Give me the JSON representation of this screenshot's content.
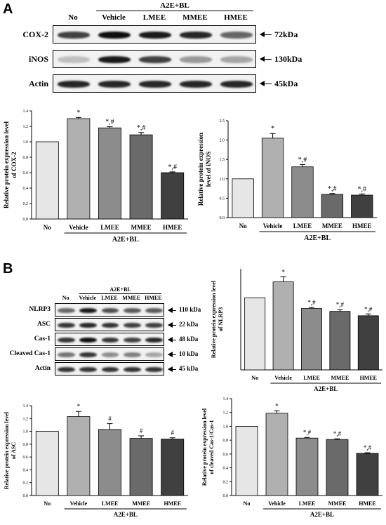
{
  "panels": {
    "a": "A",
    "b": "B"
  },
  "western_a": {
    "group_label": "A2E+BL",
    "lanes": [
      "No",
      "Vehicle",
      "LMEE",
      "MMEE",
      "HMEE"
    ],
    "rows": [
      {
        "name": "COX-2",
        "size": "72kDa",
        "intensity": [
          0.75,
          0.95,
          0.9,
          0.85,
          0.6
        ]
      },
      {
        "name": "iNOS",
        "size": "130kDa",
        "intensity": [
          0.25,
          0.9,
          0.75,
          0.4,
          0.35
        ]
      },
      {
        "name": "Actin",
        "size": "45kDa",
        "intensity": [
          0.85,
          0.85,
          0.85,
          0.85,
          0.85
        ]
      }
    ]
  },
  "western_b": {
    "group_label": "A2E+BL",
    "lanes": [
      "No",
      "Vehicle",
      "LMEE",
      "MMEE",
      "HMEE"
    ],
    "rows": [
      {
        "name": "NLRP3",
        "size": "110 kDa",
        "intensity": [
          0.6,
          0.9,
          0.7,
          0.65,
          0.65
        ]
      },
      {
        "name": "ASC",
        "size": "22 kDa",
        "intensity": [
          0.8,
          0.85,
          0.8,
          0.75,
          0.75
        ]
      },
      {
        "name": "Cas-1",
        "size": "48 kDa",
        "intensity": [
          0.8,
          0.95,
          0.8,
          0.75,
          0.85
        ]
      },
      {
        "name": "Cleaved Cas-1",
        "size": "10 kDa",
        "intensity": [
          0.55,
          0.8,
          0.45,
          0.5,
          0.35
        ]
      },
      {
        "name": "Actin",
        "size": "45 kDa",
        "intensity": [
          0.8,
          0.8,
          0.8,
          0.8,
          0.8
        ]
      }
    ]
  },
  "chart_data": [
    {
      "type": "bar",
      "categories": [
        "No",
        "Vehicle",
        "LMEE",
        "MMEE",
        "HMEE"
      ],
      "values": [
        1.0,
        1.3,
        1.18,
        1.09,
        0.6
      ],
      "errors": [
        0,
        0.015,
        0.015,
        0.03,
        0.01
      ],
      "annotations": [
        "",
        "*",
        "*,#",
        "*,#",
        "*,#"
      ],
      "ylabel": "Relative protein expression level of COX-2",
      "group_label": "A2E+BL",
      "ylim": [
        0,
        1.4
      ],
      "yticks": [
        "0.0",
        "0.2",
        "0.4",
        "0.6",
        "0.8",
        "1.0",
        "1.2",
        "1.4"
      ],
      "colors": [
        "#e6e6e6",
        "#b0b0b0",
        "#8c8c8c",
        "#6a6a6a",
        "#404040"
      ]
    },
    {
      "type": "bar",
      "categories": [
        "No",
        "Vehicle",
        "LMEE",
        "MMEE",
        "HMEE"
      ],
      "values": [
        1.0,
        2.05,
        1.31,
        0.6,
        0.58
      ],
      "errors": [
        0,
        0.12,
        0.06,
        0.02,
        0.03
      ],
      "annotations": [
        "",
        "*",
        "*,#",
        "*,#",
        "*,#"
      ],
      "ylabel": "Relative protein expression level of iNOS",
      "group_label": "A2E+BL",
      "ylim": [
        0,
        2.5
      ],
      "yticks": [
        "0.0",
        "0.5",
        "1.0",
        "1.5",
        "2.0",
        "2.5"
      ],
      "colors": [
        "#e6e6e6",
        "#b0b0b0",
        "#8c8c8c",
        "#6a6a6a",
        "#404040"
      ]
    },
    {
      "type": "bar",
      "categories": [
        "No",
        "Vehicle",
        "LMEE",
        "MMEE",
        "HMEE"
      ],
      "values": [
        1.0,
        1.22,
        0.85,
        0.81,
        0.75
      ],
      "errors": [
        0,
        0.07,
        0.015,
        0.025,
        0.025
      ],
      "annotations": [
        "",
        "*",
        "*,#",
        "*,#",
        "*,#"
      ],
      "ylabel": "Relative protein expression level of NLRP3",
      "group_label": "A2E+BL",
      "ylim": [
        0,
        1.4
      ],
      "yticks": [],
      "colors": [
        "#e6e6e6",
        "#b0b0b0",
        "#8c8c8c",
        "#6a6a6a",
        "#404040"
      ]
    },
    {
      "type": "bar",
      "categories": [
        "No",
        "Vehicle",
        "LMEE",
        "MMEE",
        "HMEE"
      ],
      "values": [
        1.0,
        1.23,
        1.03,
        0.89,
        0.88
      ],
      "errors": [
        0,
        0.08,
        0.09,
        0.04,
        0.02
      ],
      "annotations": [
        "",
        "*",
        "#",
        "#",
        "#"
      ],
      "ylabel": "Relative protein expression level of ASC",
      "group_label": "A2E+BL",
      "ylim": [
        0,
        1.4
      ],
      "yticks": [
        "0.0",
        "0.2",
        "0.4",
        "0.6",
        "0.8",
        "1.0",
        "1.2",
        "1.4"
      ],
      "colors": [
        "#e6e6e6",
        "#b0b0b0",
        "#8c8c8c",
        "#6a6a6a",
        "#404040"
      ]
    },
    {
      "type": "bar",
      "categories": [
        "No",
        "Vehicle",
        "LMEE",
        "MMEE",
        "HMEE"
      ],
      "values": [
        1.0,
        1.19,
        0.83,
        0.81,
        0.61
      ],
      "errors": [
        0,
        0.035,
        0.01,
        0.01,
        0.008
      ],
      "annotations": [
        "",
        "*",
        "*,#",
        "*,#",
        "*,#"
      ],
      "ylabel": "Relative protein expression level of cleaved Cas-1/Cas-1",
      "group_label": "A2E+BL",
      "ylim": [
        0,
        1.4
      ],
      "yticks": [
        "0.0",
        "0.2",
        "0.4",
        "0.6",
        "0.8",
        "1.0",
        "1.2",
        "1.4"
      ],
      "colors": [
        "#e6e6e6",
        "#b0b0b0",
        "#8c8c8c",
        "#6a6a6a",
        "#404040"
      ]
    }
  ]
}
